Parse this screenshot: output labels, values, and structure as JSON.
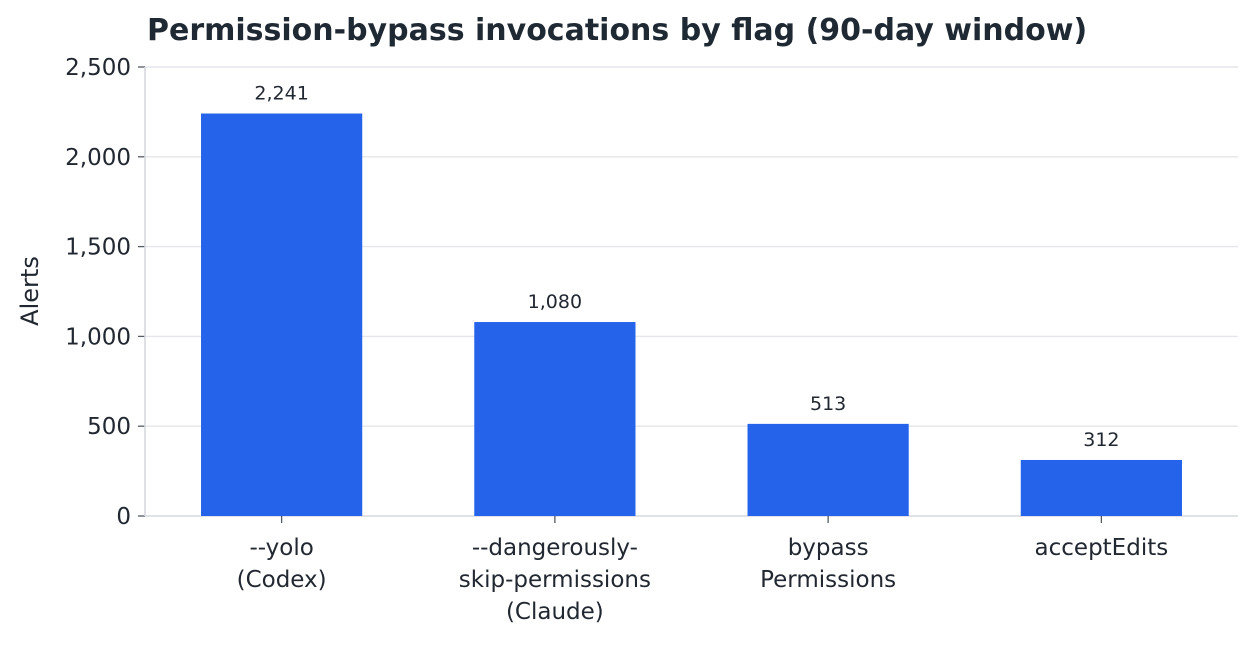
{
  "chart_data": {
    "type": "bar",
    "title": "Permission-bypass invocations by flag (90-day window)",
    "xlabel": "",
    "ylabel": "Alerts",
    "ylim": [
      0,
      2500
    ],
    "yticks": [
      0,
      500,
      1000,
      1500,
      2000,
      2500
    ],
    "ytick_labels": [
      "0",
      "500",
      "1,000",
      "1,500",
      "2,000",
      "2,500"
    ],
    "grid": true,
    "categories": [
      [
        "--yolo",
        "(Codex)"
      ],
      [
        "--dangerously-",
        "skip-permissions",
        "(Claude)"
      ],
      [
        "bypass",
        "Permissions"
      ],
      [
        "acceptEdits"
      ]
    ],
    "values": [
      2241,
      1080,
      513,
      312
    ],
    "data_labels": [
      "2,241",
      "1,080",
      "513",
      "312"
    ],
    "bar_color": "#2563eb"
  }
}
